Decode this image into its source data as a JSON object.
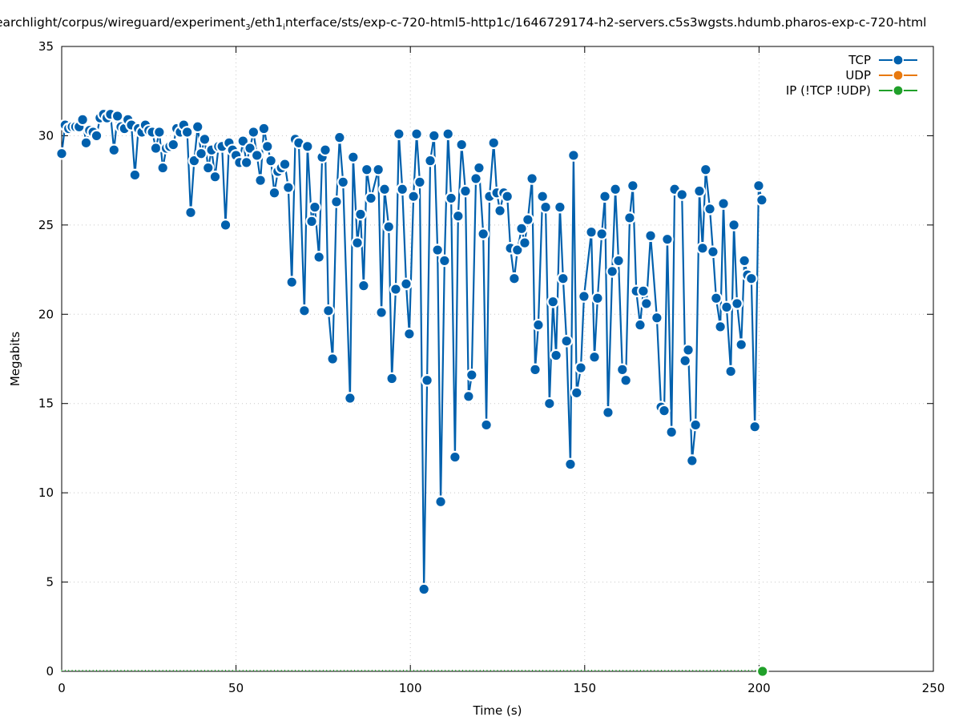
{
  "chart_data": {
    "type": "line",
    "title_parts": [
      {
        "text": "earchlight/corpus/wireguard/experiment"
      },
      {
        "text": "3",
        "sub": true
      },
      {
        "text": "/eth1"
      },
      {
        "text": "i",
        "sub": true
      },
      {
        "text": "nterface/sts/exp-c-720-html5-http1c/1646729174-h2-servers.c5s3wgsts.hdumb.pharos-exp-c-720-html"
      }
    ],
    "xlabel": "Time (s)",
    "ylabel": "Megabits",
    "xlim": [
      0,
      250
    ],
    "ylim": [
      0,
      35
    ],
    "xticks": [
      0,
      50,
      100,
      150,
      200,
      250
    ],
    "yticks": [
      0,
      5,
      10,
      15,
      20,
      25,
      30,
      35
    ],
    "grid": true,
    "legend_position": "top-right",
    "series": [
      {
        "name": "TCP",
        "color": "#0060ad",
        "x": [
          0,
          1,
          2,
          3,
          4,
          5,
          6,
          7,
          8,
          9,
          10,
          11,
          12,
          13,
          14,
          15,
          16,
          17,
          18,
          19,
          20,
          21,
          22,
          23,
          24,
          25,
          26,
          27,
          28,
          29,
          30,
          31,
          32,
          33,
          34,
          35,
          36,
          37,
          38,
          39,
          40,
          41,
          42,
          43,
          44,
          45,
          46,
          47,
          48,
          49,
          50,
          51,
          52,
          53,
          54,
          55,
          56,
          57,
          58,
          59,
          60,
          61,
          62,
          63,
          64,
          65,
          66,
          67,
          68,
          69.6,
          70.5,
          71.7,
          72.6,
          73.8,
          74.7,
          75.6,
          76.5,
          77.7,
          78.8,
          79.7,
          80.7,
          82.7,
          83.6,
          84.8,
          85.7,
          86.6,
          87.5,
          88.7,
          90.8,
          91.7,
          92.6,
          93.8,
          94.7,
          95.8,
          96.7,
          97.7,
          98.8,
          99.7,
          100.9,
          101.8,
          102.7,
          103.9,
          104.8,
          105.7,
          106.8,
          107.8,
          108.7,
          109.8,
          110.8,
          111.7,
          112.8,
          113.7,
          114.7,
          115.8,
          116.7,
          117.6,
          118.8,
          119.7,
          120.9,
          121.8,
          122.7,
          123.9,
          124.8,
          125.7,
          126.8,
          127.8,
          128.7,
          129.8,
          130.7,
          131.9,
          132.8,
          133.7,
          134.9,
          135.8,
          136.7,
          137.9,
          138.8,
          139.9,
          140.9,
          141.8,
          142.9,
          143.8,
          144.8,
          145.9,
          146.8,
          147.7,
          148.9,
          149.8,
          151.9,
          152.8,
          153.7,
          154.9,
          155.8,
          156.7,
          157.9,
          158.8,
          159.7,
          160.8,
          161.8,
          162.9,
          163.8,
          164.8,
          165.9,
          166.8,
          167.7,
          168.9,
          170.7,
          171.9,
          172.8,
          173.7,
          174.9,
          175.8,
          177.9,
          178.8,
          179.7,
          180.8,
          181.8,
          182.9,
          183.8,
          184.7,
          185.9,
          186.8,
          187.7,
          188.9,
          189.8,
          190.7,
          191.9,
          192.8,
          193.7,
          194.9,
          195.8,
          196.7,
          197.8,
          198.8,
          199.9,
          200.8
        ],
        "y": [
          29.0,
          30.6,
          30.4,
          30.5,
          30.5,
          30.5,
          30.9,
          29.6,
          30.3,
          30.2,
          30.0,
          31.0,
          31.2,
          31.0,
          31.2,
          29.2,
          31.1,
          30.5,
          30.4,
          30.9,
          30.6,
          27.8,
          30.4,
          30.2,
          30.6,
          30.3,
          30.2,
          29.3,
          30.2,
          28.2,
          29.3,
          29.4,
          29.5,
          30.4,
          30.2,
          30.6,
          30.2,
          25.7,
          28.6,
          30.5,
          29.0,
          29.8,
          28.2,
          29.2,
          27.7,
          29.4,
          29.4,
          25.0,
          29.6,
          29.2,
          28.9,
          28.5,
          29.7,
          28.5,
          29.3,
          30.2,
          28.9,
          27.5,
          30.4,
          29.4,
          28.6,
          26.8,
          28.0,
          28.2,
          28.4,
          27.1,
          21.8,
          29.8,
          29.6,
          20.2,
          29.4,
          25.2,
          26.0,
          23.2,
          28.8,
          29.2,
          20.2,
          17.5,
          26.3,
          29.9,
          27.4,
          15.3,
          28.8,
          24.0,
          25.6,
          21.6,
          28.1,
          26.5,
          28.1,
          20.1,
          27.0,
          24.9,
          16.4,
          21.4,
          30.1,
          27.0,
          21.7,
          18.9,
          26.6,
          30.1,
          27.4,
          4.6,
          16.3,
          28.6,
          30.0,
          23.6,
          9.5,
          23.0,
          30.1,
          26.5,
          12.0,
          25.5,
          29.5,
          26.9,
          15.4,
          16.6,
          27.6,
          28.2,
          24.5,
          13.8,
          26.6,
          29.6,
          26.8,
          25.8,
          26.8,
          26.6,
          23.7,
          22.0,
          23.6,
          24.8,
          24.0,
          25.3,
          27.6,
          16.9,
          19.4,
          26.6,
          26.0,
          15.0,
          20.7,
          17.7,
          26.0,
          22.0,
          18.5,
          11.6,
          28.9,
          15.6,
          17.0,
          21.0,
          24.6,
          17.6,
          20.9,
          24.5,
          26.6,
          14.5,
          22.4,
          27.0,
          23.0,
          16.9,
          16.3,
          25.4,
          27.2,
          21.3,
          19.4,
          21.3,
          20.6,
          24.4,
          19.8,
          14.8,
          14.6,
          24.2,
          13.4,
          27.0,
          26.7,
          17.4,
          18.0,
          11.8,
          13.8,
          26.9,
          23.7,
          28.1,
          25.9,
          23.5,
          20.9,
          19.3,
          26.2,
          20.4,
          16.8,
          25.0,
          20.6,
          18.3,
          23.0,
          22.2,
          22.0,
          13.7,
          27.2,
          26.4
        ]
      },
      {
        "name": "UDP",
        "color": "#e8790e",
        "x": [],
        "y": []
      },
      {
        "name": "IP (!TCP  !UDP)",
        "color": "#20a02a",
        "x": [
          201
        ],
        "y": [
          0
        ]
      }
    ]
  }
}
